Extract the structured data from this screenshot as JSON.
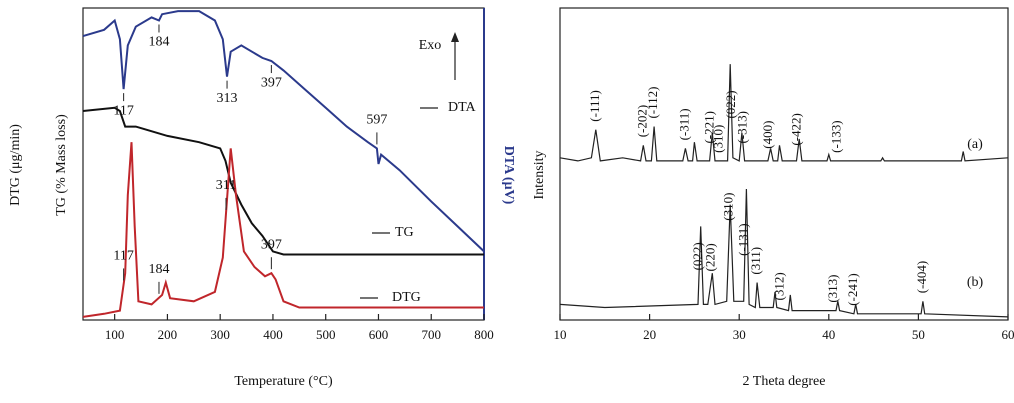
{
  "chart_data": [
    {
      "type": "line",
      "xlabel": "Temperature (°C)",
      "ylabels": [
        "DTG (μg/min)",
        "TG (% Mass loss)"
      ],
      "y2label": "DTA (μV)",
      "exo_label": "Exo",
      "xlim": [
        40,
        800
      ],
      "xticks": [
        100,
        200,
        300,
        400,
        500,
        600,
        700,
        800
      ],
      "ylim": [
        0,
        100
      ],
      "series": [
        {
          "name": "DTA",
          "color": "#2b3a8c",
          "x": [
            40,
            80,
            100,
            110,
            117,
            125,
            140,
            170,
            184,
            190,
            220,
            260,
            290,
            305,
            313,
            320,
            340,
            380,
            397,
            420,
            460,
            500,
            540,
            580,
            597,
            600,
            605,
            640,
            700,
            750,
            800
          ],
          "values": [
            91,
            93,
            96,
            90,
            74,
            88,
            94,
            97,
            96,
            98,
            99,
            99,
            96,
            90,
            78,
            86,
            88,
            84,
            83,
            80,
            74,
            68,
            62,
            57,
            55,
            50,
            53,
            48,
            38,
            30,
            22
          ],
          "peaks": [
            117,
            184,
            313,
            397,
            597
          ]
        },
        {
          "name": "TG",
          "color": "#111111",
          "x": [
            40,
            100,
            110,
            120,
            140,
            200,
            260,
            300,
            310,
            320,
            340,
            360,
            380,
            400,
            420,
            500,
            800
          ],
          "values": [
            67,
            68,
            67,
            62,
            62,
            59,
            57,
            55,
            51,
            44,
            37,
            31,
            27,
            22,
            21,
            21,
            21
          ],
          "peaks": []
        },
        {
          "name": "DTG",
          "color": "#c0262b",
          "x": [
            40,
            80,
            110,
            120,
            125,
            132,
            138,
            145,
            170,
            190,
            197,
            205,
            250,
            290,
            305,
            320,
            330,
            345,
            365,
            385,
            397,
            405,
            420,
            450,
            500,
            800
          ],
          "values": [
            1,
            2,
            3,
            15,
            40,
            57,
            30,
            6,
            5,
            8,
            12,
            7,
            6,
            9,
            20,
            55,
            40,
            22,
            17,
            14,
            15,
            13,
            6,
            4,
            4,
            4
          ],
          "peaks": [
            117,
            184,
            311,
            397
          ]
        }
      ]
    },
    {
      "type": "line",
      "xlabel": "2 Theta degree",
      "ylabel": "Intensity",
      "xlim": [
        10,
        60
      ],
      "xticks": [
        10,
        20,
        30,
        40,
        50,
        60
      ],
      "ylim": [
        0,
        100
      ],
      "series": [
        {
          "name": "(a)",
          "color": "#222222",
          "x": [
            10,
            12,
            13.5,
            14,
            14.5,
            17,
            19,
            19.3,
            19.6,
            20.2,
            20.5,
            20.8,
            23.7,
            24,
            24.3,
            24.8,
            25,
            25.3,
            26.7,
            27,
            27.3,
            28.7,
            29,
            29.3,
            30,
            30.3,
            30.6,
            33.2,
            33.5,
            33.8,
            34.3,
            34.5,
            34.8,
            36.4,
            36.7,
            37,
            39.8,
            40,
            40.2,
            45.8,
            46,
            46.2,
            54.8,
            55,
            55.2,
            60
          ],
          "values": [
            52,
            51,
            52,
            61,
            51,
            52,
            51,
            56,
            51,
            51,
            62,
            51,
            51,
            55,
            51,
            51,
            57,
            51,
            51,
            60,
            51,
            51,
            82,
            52,
            51,
            60,
            51,
            51,
            55,
            51,
            51,
            56,
            51,
            51,
            58,
            51,
            51,
            53,
            51,
            51,
            52,
            51,
            51,
            54,
            51,
            52
          ],
          "hkl": [
            {
              "text": "(-111)",
              "x": 14
            },
            {
              "text": "(-202)",
              "x": 19.3
            },
            {
              "text": "(-112)",
              "x": 20.5
            },
            {
              "text": "(-311)",
              "x": 24
            },
            {
              "text": "(-221)",
              "x": 26.8
            },
            {
              "text": "(310)",
              "x": 27.8
            },
            {
              "text": "(022)",
              "x": 29.2
            },
            {
              "text": "(-313)",
              "x": 30.5
            },
            {
              "text": "(400)",
              "x": 33.3
            },
            {
              "text": "(-422)",
              "x": 36.5
            },
            {
              "text": "(-133)",
              "x": 41
            }
          ]
        },
        {
          "name": "(b)",
          "color": "#222222",
          "x": [
            10,
            15,
            25.4,
            25.7,
            26,
            26.5,
            27,
            27.3,
            28.6,
            29,
            29.4,
            30.5,
            30.8,
            31.1,
            31.8,
            32,
            32.3,
            33.8,
            34,
            34.2,
            35.5,
            35.7,
            35.9,
            40.8,
            41,
            41.2,
            42.8,
            43,
            43.2,
            50.3,
            50.5,
            50.7,
            60
          ],
          "values": [
            5,
            4,
            5,
            30,
            5,
            5,
            15,
            5,
            6,
            37,
            6,
            6,
            42,
            5,
            4,
            12,
            4,
            4,
            9,
            4,
            3,
            8,
            3,
            3,
            6,
            3,
            2,
            5,
            2,
            2,
            6,
            2,
            1
          ],
          "hkl": [
            {
              "text": "(022)",
              "x": 25.5
            },
            {
              "text": "(220)",
              "x": 26.9
            },
            {
              "text": "(310)",
              "x": 28.9
            },
            {
              "text": "(-131)",
              "x": 30.6
            },
            {
              "text": "(311)",
              "x": 32
            },
            {
              "text": "(312)",
              "x": 34.6
            },
            {
              "text": "(313)",
              "x": 40.6
            },
            {
              "text": "(-241)",
              "x": 42.8
            },
            {
              "text": "(-404)",
              "x": 50.5
            }
          ]
        }
      ]
    }
  ]
}
